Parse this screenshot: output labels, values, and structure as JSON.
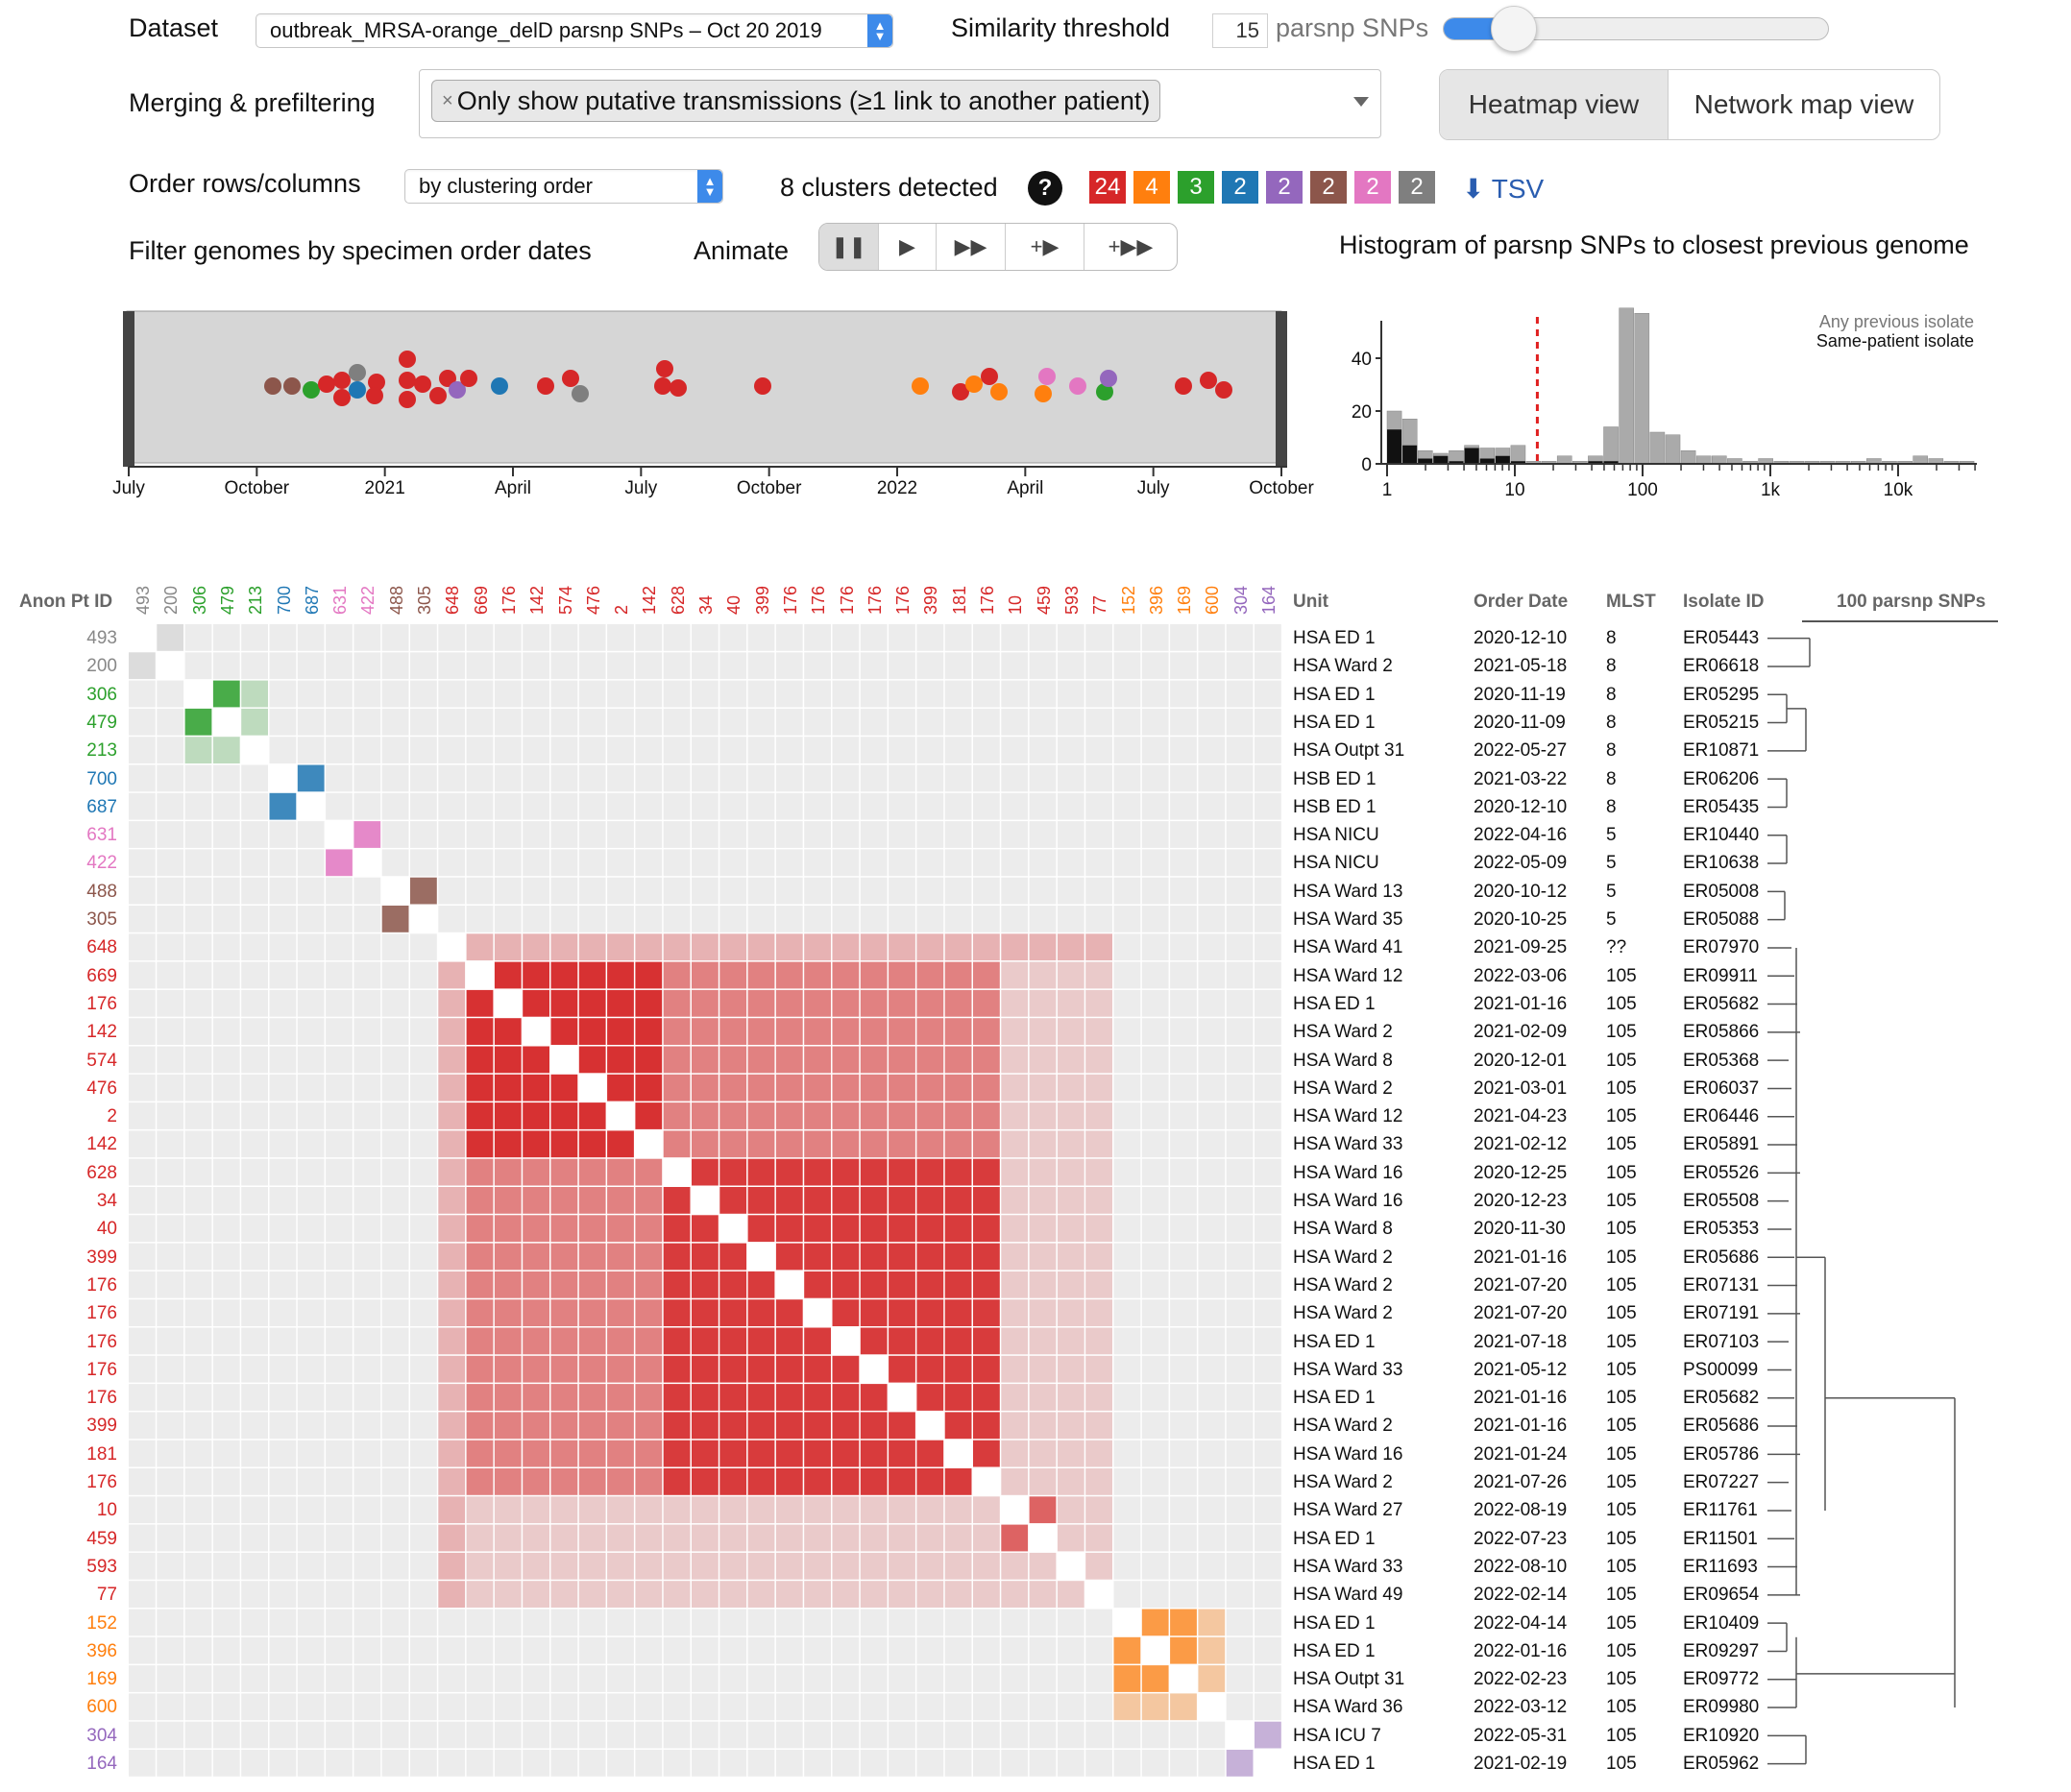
{
  "controls": {
    "dataset_label": "Dataset",
    "dataset_value": "outbreak_MRSA-orange_delD parsnp SNPs – Oct 20 2019",
    "similarity_label": "Similarity threshold",
    "threshold_value": "15",
    "threshold_unit": "parsnp SNPs",
    "threshold_fraction": 0.18,
    "merging_label": "Merging & prefiltering",
    "filter_tag": "Only show putative transmissions (≥1 link to another patient)",
    "view_heatmap": "Heatmap view",
    "view_network": "Network map view",
    "order_label": "Order rows/columns",
    "order_value": "by clustering order",
    "clusters_text": "8 clusters detected",
    "help": "?",
    "clusters": [
      {
        "n": "24",
        "color": "#d62728"
      },
      {
        "n": "4",
        "color": "#ff7f0e"
      },
      {
        "n": "3",
        "color": "#2ca02c"
      },
      {
        "n": "2",
        "color": "#1f77b4"
      },
      {
        "n": "2",
        "color": "#9467bd"
      },
      {
        "n": "2",
        "color": "#8c564b"
      },
      {
        "n": "2",
        "color": "#e377c2"
      },
      {
        "n": "2",
        "color": "#7f7f7f"
      }
    ],
    "tsv": "TSV",
    "filter_dates_label": "Filter genomes by specimen order dates",
    "animate_label": "Animate",
    "histogram_title": "Histogram of parsnp SNPs to closest previous genome"
  },
  "timeline": {
    "ticks": [
      "July",
      "October",
      "2021",
      "April",
      "July",
      "October",
      "2022",
      "April",
      "July",
      "October"
    ]
  },
  "histogram": {
    "y_ticks": [
      "40",
      "20",
      "0"
    ],
    "x_ticks": [
      "1",
      "10",
      "100",
      "1k",
      "10k"
    ],
    "legend_any": "Any previous isolate",
    "legend_same": "Same-patient isolate",
    "threshold": 15,
    "any_counts": [
      20,
      17,
      5,
      4,
      5,
      7,
      6,
      6,
      7,
      1,
      1,
      3,
      1,
      3,
      14,
      59,
      57,
      12,
      11,
      5,
      3,
      3,
      2,
      1,
      2,
      1,
      1,
      1,
      1,
      1,
      1,
      2,
      1,
      1,
      3,
      2,
      1,
      1
    ],
    "same_counts": [
      13,
      7,
      2,
      3,
      1,
      6,
      2,
      3,
      1,
      0,
      0,
      0,
      0,
      1,
      1,
      0,
      0,
      0,
      0,
      0,
      0,
      0,
      0,
      0,
      0,
      0,
      0,
      0,
      0,
      0,
      0,
      0,
      0,
      0,
      0,
      0,
      0,
      0
    ]
  },
  "table": {
    "headers": {
      "anon": "Anon Pt ID",
      "unit": "Unit",
      "date": "Order Date",
      "mlst": "MLST",
      "isolate": "Isolate ID",
      "scale": "100 parsnp SNPs"
    },
    "rows": [
      {
        "id": "493",
        "color": "#888888",
        "unit": "HSA ED 1",
        "date": "2020-12-10",
        "mlst": "8",
        "isolate": "ER05443"
      },
      {
        "id": "200",
        "color": "#888888",
        "unit": "HSA Ward 2",
        "date": "2021-05-18",
        "mlst": "8",
        "isolate": "ER06618"
      },
      {
        "id": "306",
        "color": "#2ca02c",
        "unit": "HSA ED 1",
        "date": "2020-11-19",
        "mlst": "8",
        "isolate": "ER05295"
      },
      {
        "id": "479",
        "color": "#2ca02c",
        "unit": "HSA ED 1",
        "date": "2020-11-09",
        "mlst": "8",
        "isolate": "ER05215"
      },
      {
        "id": "213",
        "color": "#2ca02c",
        "unit": "HSA Outpt 31",
        "date": "2022-05-27",
        "mlst": "8",
        "isolate": "ER10871"
      },
      {
        "id": "700",
        "color": "#1f77b4",
        "unit": "HSB ED 1",
        "date": "2021-03-22",
        "mlst": "8",
        "isolate": "ER06206"
      },
      {
        "id": "687",
        "color": "#1f77b4",
        "unit": "HSB ED 1",
        "date": "2020-12-10",
        "mlst": "8",
        "isolate": "ER05435"
      },
      {
        "id": "631",
        "color": "#e377c2",
        "unit": "HSA NICU",
        "date": "2022-04-16",
        "mlst": "5",
        "isolate": "ER10440"
      },
      {
        "id": "422",
        "color": "#e377c2",
        "unit": "HSA NICU",
        "date": "2022-05-09",
        "mlst": "5",
        "isolate": "ER10638"
      },
      {
        "id": "488",
        "color": "#8c564b",
        "unit": "HSA Ward 13",
        "date": "2020-10-12",
        "mlst": "5",
        "isolate": "ER05008"
      },
      {
        "id": "305",
        "color": "#8c564b",
        "unit": "HSA Ward 35",
        "date": "2020-10-25",
        "mlst": "5",
        "isolate": "ER05088"
      },
      {
        "id": "648",
        "color": "#d62728",
        "unit": "HSA Ward 41",
        "date": "2021-09-25",
        "mlst": "??",
        "isolate": "ER07970"
      },
      {
        "id": "669",
        "color": "#d62728",
        "unit": "HSA Ward 12",
        "date": "2022-03-06",
        "mlst": "105",
        "isolate": "ER09911"
      },
      {
        "id": "176",
        "color": "#d62728",
        "unit": "HSA ED 1",
        "date": "2021-01-16",
        "mlst": "105",
        "isolate": "ER05682"
      },
      {
        "id": "142",
        "color": "#d62728",
        "unit": "HSA Ward 2",
        "date": "2021-02-09",
        "mlst": "105",
        "isolate": "ER05866"
      },
      {
        "id": "574",
        "color": "#d62728",
        "unit": "HSA Ward 8",
        "date": "2020-12-01",
        "mlst": "105",
        "isolate": "ER05368"
      },
      {
        "id": "476",
        "color": "#d62728",
        "unit": "HSA Ward 2",
        "date": "2021-03-01",
        "mlst": "105",
        "isolate": "ER06037"
      },
      {
        "id": "2",
        "color": "#d62728",
        "unit": "HSA Ward 12",
        "date": "2021-04-23",
        "mlst": "105",
        "isolate": "ER06446"
      },
      {
        "id": "142",
        "color": "#d62728",
        "unit": "HSA Ward 33",
        "date": "2021-02-12",
        "mlst": "105",
        "isolate": "ER05891"
      },
      {
        "id": "628",
        "color": "#d62728",
        "unit": "HSA Ward 16",
        "date": "2020-12-25",
        "mlst": "105",
        "isolate": "ER05526"
      },
      {
        "id": "34",
        "color": "#d62728",
        "unit": "HSA Ward 16",
        "date": "2020-12-23",
        "mlst": "105",
        "isolate": "ER05508"
      },
      {
        "id": "40",
        "color": "#d62728",
        "unit": "HSA Ward 8",
        "date": "2020-11-30",
        "mlst": "105",
        "isolate": "ER05353"
      },
      {
        "id": "399",
        "color": "#d62728",
        "unit": "HSA Ward 2",
        "date": "2021-01-16",
        "mlst": "105",
        "isolate": "ER05686"
      },
      {
        "id": "176",
        "color": "#d62728",
        "unit": "HSA Ward 2",
        "date": "2021-07-20",
        "mlst": "105",
        "isolate": "ER07131"
      },
      {
        "id": "176",
        "color": "#d62728",
        "unit": "HSA Ward 2",
        "date": "2021-07-20",
        "mlst": "105",
        "isolate": "ER07191"
      },
      {
        "id": "176",
        "color": "#d62728",
        "unit": "HSA ED 1",
        "date": "2021-07-18",
        "mlst": "105",
        "isolate": "ER07103"
      },
      {
        "id": "176",
        "color": "#d62728",
        "unit": "HSA Ward 33",
        "date": "2021-05-12",
        "mlst": "105",
        "isolate": "PS00099"
      },
      {
        "id": "176",
        "color": "#d62728",
        "unit": "HSA ED 1",
        "date": "2021-01-16",
        "mlst": "105",
        "isolate": "ER05682"
      },
      {
        "id": "399",
        "color": "#d62728",
        "unit": "HSA Ward 2",
        "date": "2021-01-16",
        "mlst": "105",
        "isolate": "ER05686"
      },
      {
        "id": "181",
        "color": "#d62728",
        "unit": "HSA Ward 16",
        "date": "2021-01-24",
        "mlst": "105",
        "isolate": "ER05786"
      },
      {
        "id": "176",
        "color": "#d62728",
        "unit": "HSA Ward 2",
        "date": "2021-07-26",
        "mlst": "105",
        "isolate": "ER07227"
      },
      {
        "id": "10",
        "color": "#d62728",
        "unit": "HSA Ward 27",
        "date": "2022-08-19",
        "mlst": "105",
        "isolate": "ER11761"
      },
      {
        "id": "459",
        "color": "#d62728",
        "unit": "HSA ED 1",
        "date": "2022-07-23",
        "mlst": "105",
        "isolate": "ER11501"
      },
      {
        "id": "593",
        "color": "#d62728",
        "unit": "HSA Ward 33",
        "date": "2022-08-10",
        "mlst": "105",
        "isolate": "ER11693"
      },
      {
        "id": "77",
        "color": "#d62728",
        "unit": "HSA Ward 49",
        "date": "2022-02-14",
        "mlst": "105",
        "isolate": "ER09654"
      },
      {
        "id": "152",
        "color": "#ff7f0e",
        "unit": "HSA ED 1",
        "date": "2022-04-14",
        "mlst": "105",
        "isolate": "ER10409"
      },
      {
        "id": "396",
        "color": "#ff7f0e",
        "unit": "HSA ED 1",
        "date": "2022-01-16",
        "mlst": "105",
        "isolate": "ER09297"
      },
      {
        "id": "169",
        "color": "#ff7f0e",
        "unit": "HSA Outpt 31",
        "date": "2022-02-23",
        "mlst": "105",
        "isolate": "ER09772"
      },
      {
        "id": "600",
        "color": "#ff7f0e",
        "unit": "HSA Ward 36",
        "date": "2022-03-12",
        "mlst": "105",
        "isolate": "ER09980"
      },
      {
        "id": "304",
        "color": "#9467bd",
        "unit": "HSA ICU 7",
        "date": "2022-05-31",
        "mlst": "105",
        "isolate": "ER10920"
      },
      {
        "id": "164",
        "color": "#9467bd",
        "unit": "HSA ED 1",
        "date": "2021-02-19",
        "mlst": "105",
        "isolate": "ER05962"
      }
    ]
  },
  "colors": {
    "accent": "#3d8aea",
    "threshold_line": "#e02020",
    "link": "#2a5db0"
  }
}
